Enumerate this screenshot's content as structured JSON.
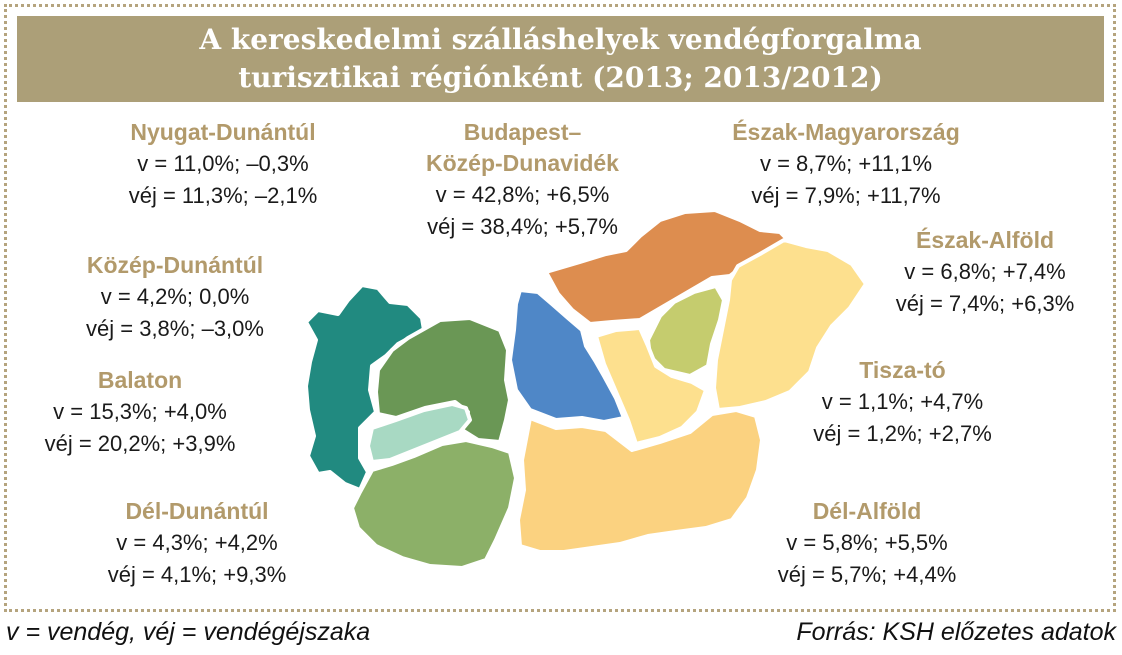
{
  "title": {
    "line1": "A kereskedelmi szálláshelyek vendégforgalma",
    "line2": "turisztikai régiónként (2013; 2013/2012)"
  },
  "regions": {
    "nyugat_dunantul": {
      "name": "Nyugat-Dunántúl",
      "v": "v = 11,0%; –0,3%",
      "vej": "véj = 11,3%; –2,1%",
      "color": "#218a80"
    },
    "budapest": {
      "name_line1": "Budapest–",
      "name_line2": "Közép-Dunavidék",
      "v": "v = 42,8%; +6,5%",
      "vej": "véj = 38,4%; +5,7%",
      "color": "#4f87c7"
    },
    "eszak_magyarorszag": {
      "name": "Észak-Magyarország",
      "v": "v = 8,7%; +11,1%",
      "vej": "véj = 7,9%; +11,7%",
      "color": "#dd8d4f"
    },
    "kozep_dunantul": {
      "name": "Közép-Dunántúl",
      "v": "v = 4,2%; 0,0%",
      "vej": "véj = 3,8%; –3,0%",
      "color": "#6a9755"
    },
    "eszak_alfold": {
      "name": "Észak-Alföld",
      "v": "v = 6,8%; +7,4%",
      "vej": "véj = 7,4%; +6,3%",
      "color": "#fde08e"
    },
    "balaton": {
      "name": "Balaton",
      "v": "v = 15,3%; +4,0%",
      "vej": "véj = 20,2%; +3,9%",
      "color": "#a8d9c3"
    },
    "tisza_to": {
      "name": "Tisza-tó",
      "v": "v = 1,1%; +4,7%",
      "vej": "véj = 1,2%; +2,7%",
      "color": "#c5cc6e"
    },
    "del_dunantul": {
      "name": "Dél-Dunántúl",
      "v": "v = 4,3%; +4,2%",
      "vej": "véj = 4,1%; +9,3%",
      "color": "#8cb068"
    },
    "del_alfold": {
      "name": "Dél-Alföld",
      "v": "v = 5,8%; +5,5%",
      "vej": "véj = 5,7%; +4,4%",
      "color": "#fbd280"
    }
  },
  "footer": {
    "legend": "v = vendég, véj = vendégéjszaka",
    "source": "Forrás: KSH előzetes adatok"
  }
}
